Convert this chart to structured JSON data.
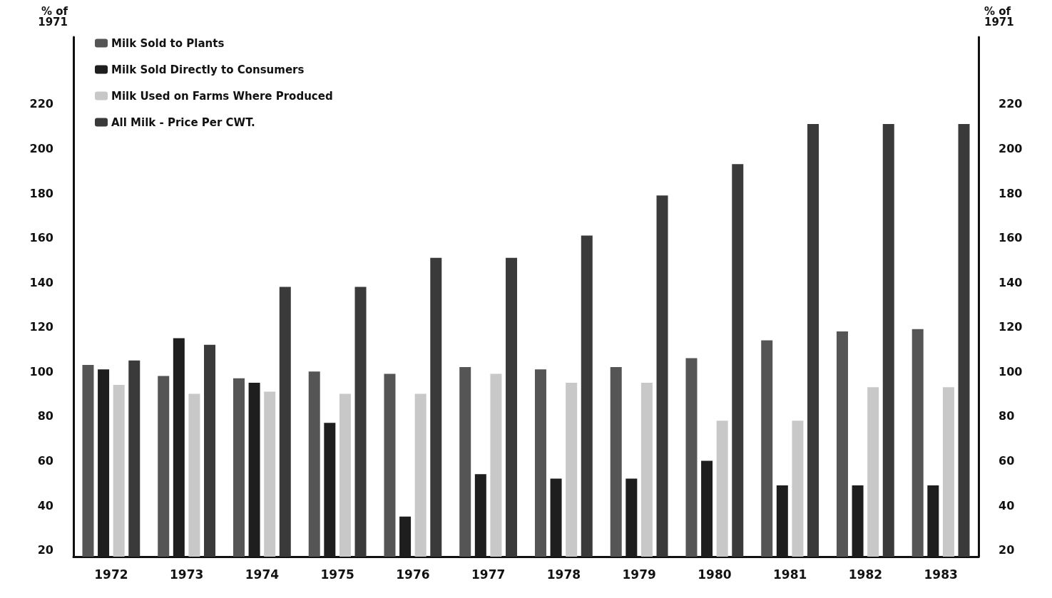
{
  "chart_data": {
    "type": "bar",
    "ylabel": "% of\n1971",
    "y2label": "% of\n1971",
    "categories": [
      "1972",
      "1973",
      "1974",
      "1975",
      "1976",
      "1977",
      "1978",
      "1979",
      "1980",
      "1981",
      "1982",
      "1983"
    ],
    "series": [
      {
        "name": "Milk Sold to Plants",
        "color": "#555555",
        "values": [
          103,
          98,
          97,
          100,
          99,
          102,
          101,
          102,
          106,
          114,
          118,
          119
        ]
      },
      {
        "name": "Milk Sold Directly to Consumers",
        "color": "#1e1e1e",
        "values": [
          101,
          115,
          95,
          77,
          35,
          54,
          52,
          52,
          60,
          49,
          49,
          49
        ]
      },
      {
        "name": "Milk Used on Farms Where Produced",
        "color": "#c8c8c8",
        "values": [
          94,
          90,
          91,
          90,
          90,
          99,
          95,
          95,
          78,
          78,
          93,
          93
        ]
      },
      {
        "name": "All Milk - Price Per CWT.",
        "color": "#3a3a3a",
        "values": [
          105,
          112,
          138,
          138,
          151,
          151,
          161,
          179,
          193,
          211,
          211,
          211
        ]
      }
    ],
    "ylim": [
      17,
      250
    ],
    "yticks": [
      20,
      40,
      60,
      80,
      100,
      120,
      140,
      160,
      180,
      200,
      220
    ],
    "y2lim": [
      17,
      250
    ],
    "y2ticks": [
      20,
      40,
      60,
      80,
      100,
      120,
      140,
      160,
      180,
      200,
      220
    ],
    "legend": "top left",
    "grid": false
  }
}
